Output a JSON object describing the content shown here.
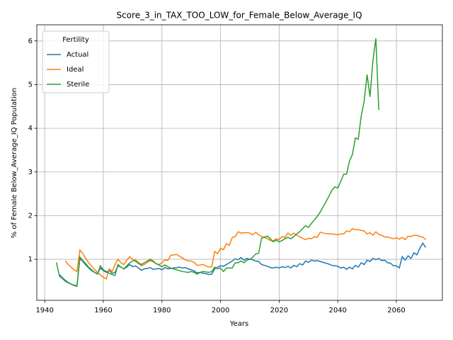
{
  "chart_data": {
    "type": "line",
    "title": "Score_3_in_TAX_TOO_LOW_for_Female_Below_Average_IQ",
    "x_label": "Years",
    "y_label": "% of Female Below_Average_IQ Population",
    "legend_title": "Fertility",
    "legend_position": "upper left",
    "grid": true,
    "xlim": [
      1937.3,
      2075.7
    ],
    "ylim": [
      0.06,
      6.37
    ],
    "xticks": [
      1940,
      1960,
      1980,
      2000,
      2020,
      2040,
      2060
    ],
    "yticks": [
      1,
      2,
      3,
      4,
      5,
      6
    ],
    "x": [
      1944,
      1945,
      1946,
      1947,
      1948,
      1949,
      1950,
      1951,
      1952,
      1953,
      1954,
      1955,
      1956,
      1957,
      1958,
      1959,
      1960,
      1961,
      1962,
      1963,
      1964,
      1965,
      1966,
      1967,
      1968,
      1969,
      1970,
      1971,
      1972,
      1973,
      1974,
      1975,
      1976,
      1977,
      1978,
      1979,
      1980,
      1981,
      1982,
      1983,
      1984,
      1985,
      1986,
      1987,
      1988,
      1989,
      1990,
      1991,
      1992,
      1993,
      1994,
      1995,
      1996,
      1997,
      1998,
      1999,
      2000,
      2001,
      2002,
      2003,
      2004,
      2005,
      2006,
      2007,
      2008,
      2009,
      2010,
      2011,
      2012,
      2013,
      2014,
      2015,
      2016,
      2017,
      2018,
      2019,
      2020,
      2021,
      2022,
      2023,
      2024,
      2025,
      2026,
      2027,
      2028,
      2029,
      2030,
      2031,
      2032,
      2033,
      2034,
      2035,
      2036,
      2037,
      2038,
      2039,
      2040,
      2041,
      2042,
      2043,
      2044,
      2045,
      2046,
      2047,
      2048,
      2049,
      2050,
      2051,
      2052,
      2053,
      2054,
      2055,
      2056,
      2057,
      2058,
      2059,
      2060,
      2061,
      2062,
      2063,
      2064,
      2065,
      2066,
      2067,
      2068,
      2069,
      2070
    ],
    "series": [
      {
        "name": "Actual",
        "color": "#1f77b4",
        "values": [
          null,
          0.65,
          0.58,
          0.52,
          0.47,
          0.43,
          0.4,
          0.38,
          1.02,
          0.95,
          0.87,
          0.8,
          0.74,
          0.7,
          0.67,
          0.8,
          0.74,
          0.7,
          0.75,
          0.68,
          0.7,
          0.85,
          0.82,
          0.78,
          0.82,
          0.88,
          0.83,
          0.85,
          0.8,
          0.75,
          0.78,
          0.79,
          0.81,
          0.77,
          0.78,
          0.79,
          0.76,
          0.81,
          0.78,
          0.79,
          0.8,
          0.81,
          0.82,
          0.8,
          0.81,
          0.78,
          0.76,
          0.73,
          0.69,
          0.7,
          0.68,
          0.67,
          0.65,
          0.66,
          0.78,
          0.82,
          0.85,
          0.84,
          0.88,
          0.92,
          0.96,
          1.01,
          0.99,
          1.04,
          0.98,
          1.02,
          1.0,
          0.99,
          0.96,
          0.95,
          0.88,
          0.86,
          0.84,
          0.81,
          0.8,
          0.82,
          0.8,
          0.83,
          0.81,
          0.84,
          0.8,
          0.86,
          0.83,
          0.9,
          0.87,
          0.96,
          0.93,
          0.98,
          0.96,
          0.97,
          0.95,
          0.93,
          0.91,
          0.89,
          0.86,
          0.85,
          0.84,
          0.8,
          0.82,
          0.77,
          0.82,
          0.78,
          0.86,
          0.82,
          0.92,
          0.88,
          0.98,
          0.95,
          1.02,
          0.99,
          1.02,
          0.97,
          0.98,
          0.92,
          0.91,
          0.85,
          0.85,
          0.8,
          1.06,
          0.98,
          1.08,
          1.02,
          1.15,
          1.1,
          1.25,
          1.37,
          1.27
        ]
      },
      {
        "name": "Ideal",
        "color": "#ff7f0e",
        "values": [
          null,
          null,
          null,
          0.97,
          0.88,
          0.82,
          0.76,
          0.72,
          1.21,
          1.13,
          1.02,
          0.92,
          0.84,
          0.77,
          0.7,
          0.64,
          0.59,
          0.55,
          0.78,
          0.72,
          0.88,
          1.0,
          0.92,
          0.88,
          0.98,
          1.06,
          1.0,
          0.95,
          0.9,
          0.85,
          0.88,
          0.93,
          0.97,
          0.94,
          0.9,
          0.88,
          0.92,
          0.99,
          0.97,
          1.09,
          1.1,
          1.11,
          1.07,
          1.03,
          0.99,
          0.96,
          0.96,
          0.93,
          0.86,
          0.87,
          0.88,
          0.85,
          0.82,
          0.83,
          1.18,
          1.13,
          1.25,
          1.22,
          1.36,
          1.32,
          1.5,
          1.52,
          1.63,
          1.6,
          1.61,
          1.61,
          1.6,
          1.56,
          1.62,
          1.56,
          1.52,
          1.5,
          1.47,
          1.43,
          1.42,
          1.47,
          1.45,
          1.52,
          1.5,
          1.6,
          1.55,
          1.6,
          1.55,
          1.52,
          1.48,
          1.45,
          1.48,
          1.47,
          1.52,
          1.5,
          1.62,
          1.6,
          1.59,
          1.58,
          1.58,
          1.57,
          1.56,
          1.58,
          1.58,
          1.65,
          1.63,
          1.7,
          1.68,
          1.68,
          1.66,
          1.65,
          1.58,
          1.61,
          1.55,
          1.63,
          1.57,
          1.55,
          1.51,
          1.51,
          1.49,
          1.47,
          1.49,
          1.46,
          1.5,
          1.45,
          1.53,
          1.52,
          1.55,
          1.55,
          1.52,
          1.51,
          1.45
        ]
      },
      {
        "name": "Sterile",
        "color": "#2ca02c",
        "values": [
          0.93,
          0.62,
          0.56,
          0.5,
          0.46,
          0.43,
          0.41,
          0.39,
          1.05,
          0.97,
          0.9,
          0.82,
          0.76,
          0.7,
          0.66,
          0.85,
          0.76,
          0.72,
          0.68,
          0.65,
          0.63,
          0.88,
          0.82,
          0.78,
          0.85,
          0.92,
          0.96,
          0.98,
          0.92,
          0.88,
          0.92,
          0.96,
          1.0,
          0.96,
          0.9,
          0.87,
          0.83,
          0.87,
          0.83,
          0.8,
          0.78,
          0.76,
          0.74,
          0.72,
          0.71,
          0.7,
          0.72,
          0.7,
          0.66,
          0.7,
          0.72,
          0.71,
          0.7,
          0.72,
          0.82,
          0.78,
          0.8,
          0.72,
          0.8,
          0.8,
          0.8,
          0.92,
          0.92,
          0.96,
          0.92,
          0.98,
          1.0,
          1.05,
          1.12,
          1.14,
          1.48,
          1.51,
          1.53,
          1.47,
          1.4,
          1.44,
          1.4,
          1.43,
          1.47,
          1.5,
          1.47,
          1.52,
          1.58,
          1.63,
          1.7,
          1.77,
          1.73,
          1.82,
          1.9,
          1.98,
          2.08,
          2.2,
          2.32,
          2.45,
          2.58,
          2.66,
          2.63,
          2.78,
          2.95,
          2.95,
          3.25,
          3.4,
          3.78,
          3.75,
          4.28,
          4.62,
          5.23,
          4.72,
          5.55,
          6.06,
          4.42,
          null,
          null,
          null,
          null,
          null,
          null,
          null,
          null,
          null,
          null,
          null,
          null,
          null,
          null,
          null,
          null
        ]
      }
    ]
  }
}
